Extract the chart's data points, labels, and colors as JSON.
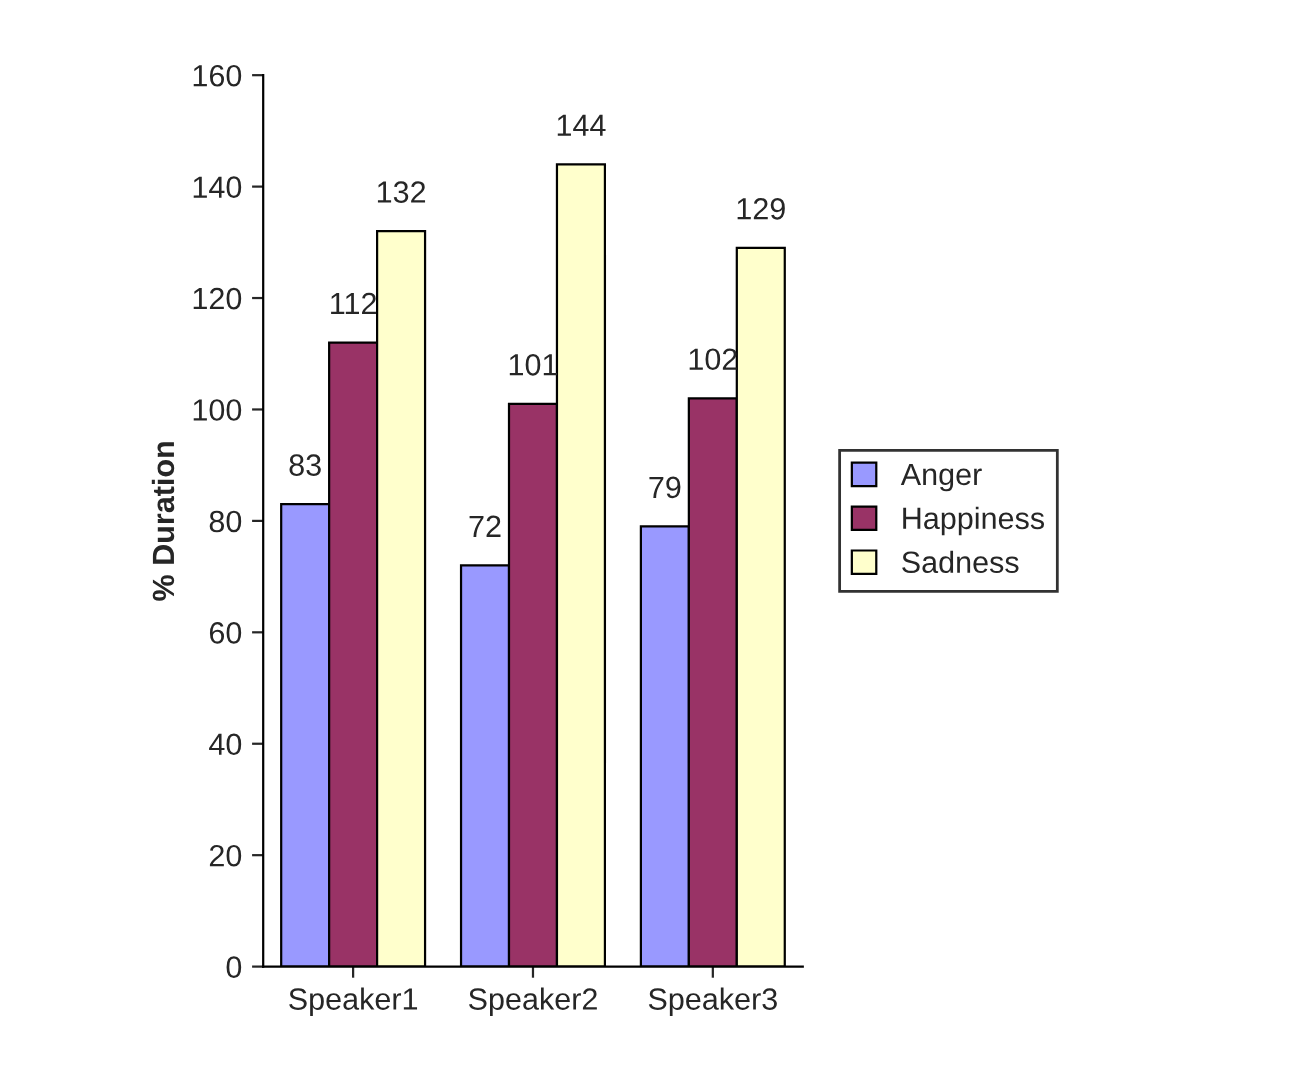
{
  "chart_data": {
    "type": "bar",
    "ylabel": "% Duration",
    "categories": [
      "Speaker1",
      "Speaker2",
      "Speaker3"
    ],
    "series": [
      {
        "name": "Anger",
        "color": "#9999ff",
        "values": [
          83,
          72,
          79
        ]
      },
      {
        "name": "Happiness",
        "color": "#993366",
        "values": [
          112,
          101,
          102
        ]
      },
      {
        "name": "Sadness",
        "color": "#ffffcc",
        "values": [
          132,
          144,
          129
        ]
      }
    ],
    "ylim": [
      0,
      160
    ],
    "yticks": [
      0,
      20,
      40,
      60,
      80,
      100,
      120,
      140,
      160
    ],
    "data_labels": true,
    "grid": false,
    "legend": "right"
  }
}
